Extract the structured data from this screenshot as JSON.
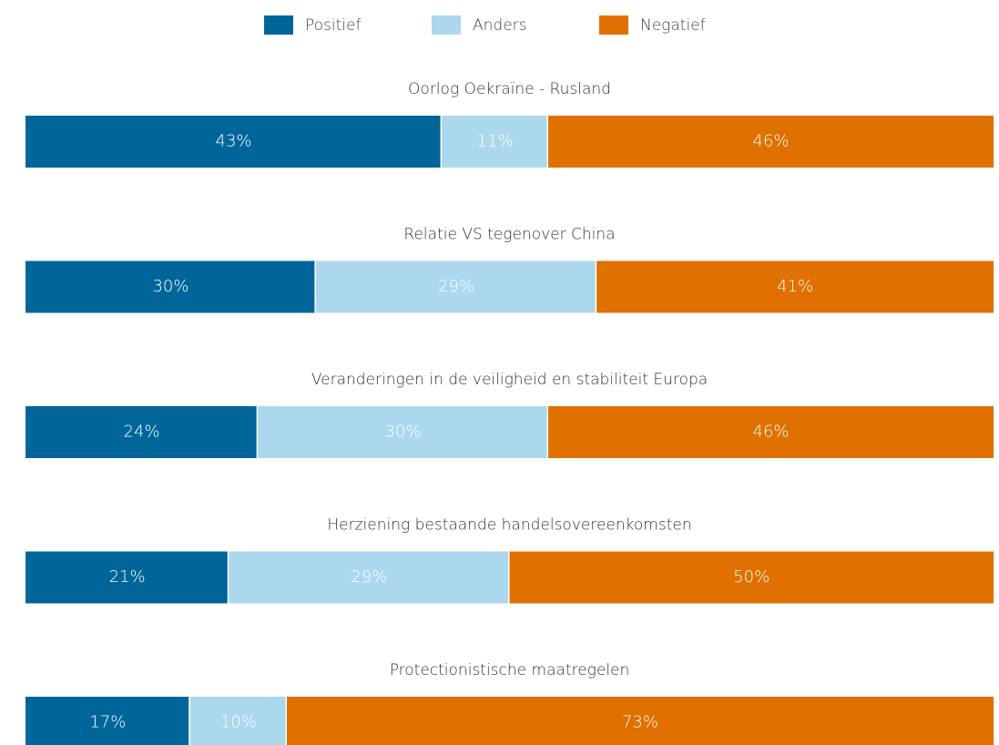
{
  "chart_data": {
    "type": "bar",
    "orientation": "horizontal",
    "stacked": true,
    "categories": [
      "Oorlog Oekraïne - Rusland",
      "Relatie VS tegenover China",
      "Veranderingen in de veiligheid en stabiliteit Europa",
      "Herziening bestaande handelsovereenkomsten",
      "Protectionistische maatregelen"
    ],
    "series": [
      {
        "name": "Positief",
        "color": "#00669a",
        "values": [
          43,
          30,
          24,
          21,
          17
        ],
        "value_labels": [
          "43%",
          "30%",
          "24%",
          "21%",
          "17%"
        ]
      },
      {
        "name": "Anders",
        "color": "#acd8ee",
        "values": [
          11,
          29,
          30,
          29,
          10
        ],
        "value_labels": [
          "11%",
          "29%",
          "30%",
          "29%",
          "10%"
        ]
      },
      {
        "name": "Negatief",
        "color": "#e07000",
        "values": [
          46,
          41,
          46,
          50,
          73
        ],
        "value_labels": [
          "46%",
          "41%",
          "46%",
          "50%",
          "73%"
        ]
      }
    ],
    "legend": "top"
  }
}
